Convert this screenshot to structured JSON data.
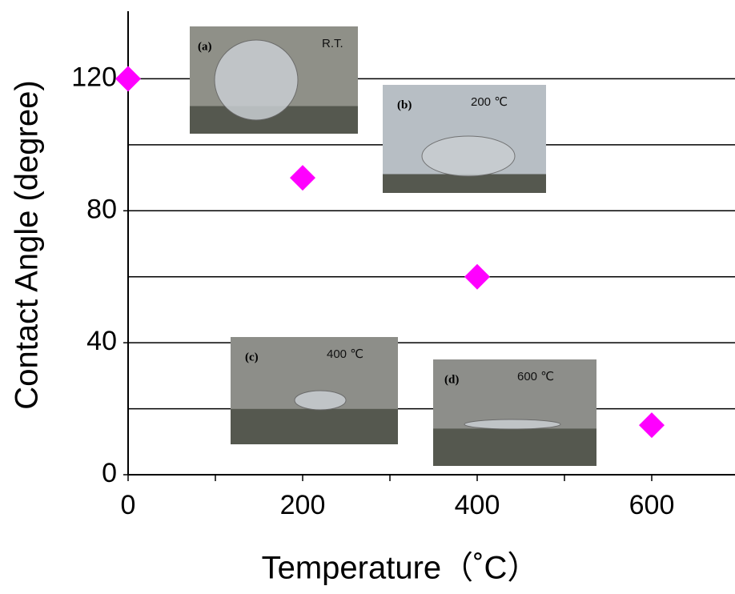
{
  "chart_data": {
    "type": "scatter",
    "x_label": "Temperature（˚C）",
    "y_label": "Contact Angle (degree)",
    "x": [
      0,
      200,
      400,
      600
    ],
    "series": [
      {
        "color": "#ff00ff",
        "values": [
          120,
          90,
          60,
          15
        ]
      }
    ],
    "xlim": [
      0,
      700
    ],
    "ylim": [
      0,
      140
    ],
    "xticks": [
      0,
      200,
      400,
      600
    ],
    "xminorticks": [
      100,
      300,
      500
    ],
    "yticks": [
      0,
      40,
      80,
      120
    ],
    "ygrid": [
      20,
      40,
      60,
      80,
      100,
      120
    ],
    "annotations": [
      {
        "label": "(a)",
        "text": "R.T."
      },
      {
        "label": "(b)",
        "text": "200 ℃"
      },
      {
        "label": "(c)",
        "text": "400 ℃"
      },
      {
        "label": "(d)",
        "text": "600 ℃"
      }
    ]
  }
}
